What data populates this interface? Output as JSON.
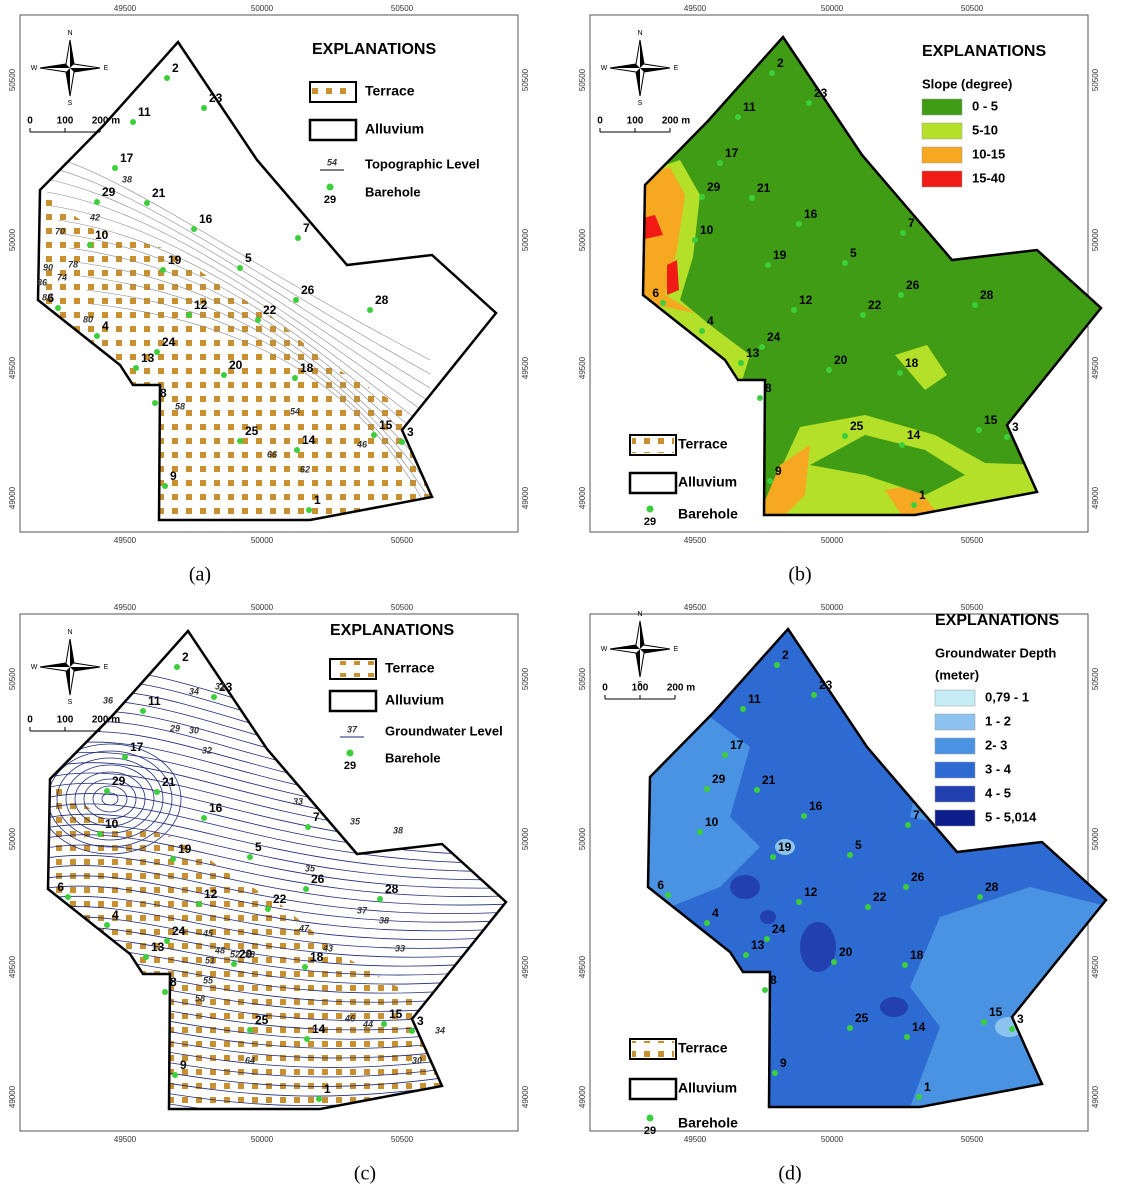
{
  "shared": {
    "compass": {
      "n": "N",
      "e": "E",
      "s": "S",
      "w": "W"
    },
    "scale": [
      "0",
      "100",
      "200 m"
    ],
    "easting": [
      49500,
      50000,
      50500
    ],
    "northing": [
      50500,
      50000,
      49500,
      49000
    ],
    "boreholes": [
      2,
      23,
      11,
      17,
      29,
      21,
      16,
      7,
      10,
      5,
      19,
      26,
      28,
      6,
      12,
      22,
      4,
      24,
      13,
      20,
      18,
      8,
      15,
      3,
      25,
      14,
      9,
      1
    ]
  },
  "panels": [
    {
      "caption": "(a)",
      "legend_title": "EXPLANATIONS",
      "legend": [
        {
          "label": "Terrace",
          "color": "#c8902e"
        },
        {
          "label": "Alluvium",
          "color": "#000000"
        },
        {
          "label": "Topographic Level",
          "sample": 54
        },
        {
          "label": "Barehole",
          "sample": 29,
          "color": "#3ccf3c"
        }
      ],
      "contour_labels": [
        38,
        42,
        70,
        78,
        74,
        90,
        86,
        82,
        80,
        58,
        54,
        66,
        62,
        46
      ]
    },
    {
      "caption": "(b)",
      "legend_title": "EXPLANATIONS",
      "legend_subtitle": [
        "Slope (degree)"
      ],
      "classes": [
        {
          "label": "0 - 5",
          "color": "#3f9c14"
        },
        {
          "label": "5-10",
          "color": "#b5e02a"
        },
        {
          "label": "10-15",
          "color": "#f6a821"
        },
        {
          "label": "15-40",
          "color": "#f01b14"
        }
      ],
      "legend": [
        {
          "label": "Terrace",
          "color": "#c8902e"
        },
        {
          "label": "Alluvium",
          "color": "#000000"
        },
        {
          "label": "Barehole",
          "sample": 29,
          "color": "#3ccf3c"
        }
      ]
    },
    {
      "caption": "(c)",
      "legend_title": "EXPLANATIONS",
      "legend": [
        {
          "label": "Terrace",
          "color": "#c8902e"
        },
        {
          "label": "Alluvium",
          "color": "#000000"
        },
        {
          "label": "Groundwater Level",
          "sample": 37,
          "color": "#1f2a7a"
        },
        {
          "label": "Barehole",
          "sample": 29,
          "color": "#3ccf3c"
        }
      ],
      "contour_labels": [
        34,
        31,
        36,
        29,
        30,
        32,
        33,
        35,
        38,
        35,
        37,
        38,
        47,
        43,
        45,
        48,
        52,
        53,
        51,
        55,
        58,
        64,
        46,
        44,
        33,
        34,
        30
      ]
    },
    {
      "caption": "(d)",
      "legend_title": "EXPLANATIONS",
      "legend_subtitle": [
        "Groundwater Depth",
        "(meter)"
      ],
      "classes": [
        {
          "label": "0,79 - 1",
          "color": "#c6ecf5"
        },
        {
          "label": "1 - 2",
          "color": "#8cc4ef"
        },
        {
          "label": "2- 3",
          "color": "#4a93e2"
        },
        {
          "label": "3 - 4",
          "color": "#2d6ad1"
        },
        {
          "label": "4 - 5",
          "color": "#2340b0"
        },
        {
          "label": "5 - 5,014",
          "color": "#0d1d8a"
        }
      ],
      "legend": [
        {
          "label": "Terrace",
          "color": "#c8902e"
        },
        {
          "label": "Alluvium",
          "color": "#000000"
        },
        {
          "label": "Barehole",
          "sample": 29,
          "color": "#3ccf3c"
        }
      ]
    }
  ]
}
